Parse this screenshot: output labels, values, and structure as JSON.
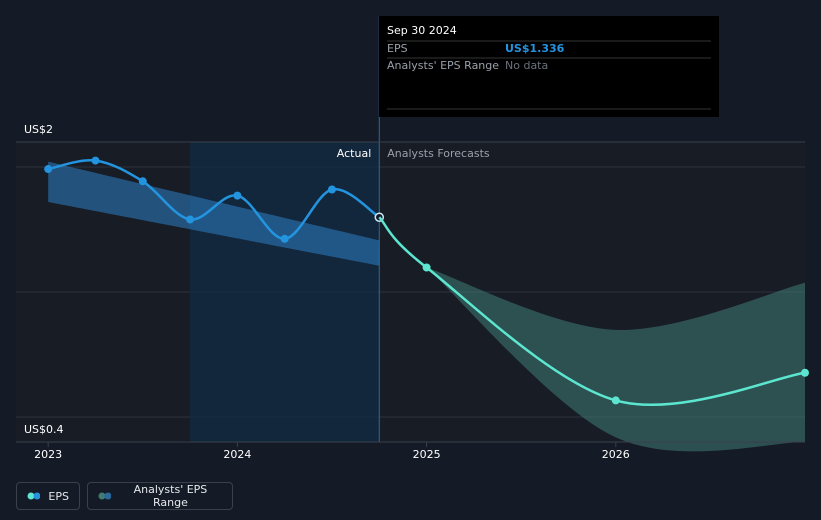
{
  "chart_data": {
    "type": "line",
    "log_y": true,
    "xlim": [
      2022.83,
      2027.0
    ],
    "xticks": [
      2023,
      2024,
      2025,
      2026
    ],
    "ylim": [
      0.4,
      2
    ],
    "yticks": [
      {
        "value": 2,
        "label": "US$2"
      },
      {
        "value": 0.4,
        "label": "US$0.4"
      }
    ],
    "annotations": [
      "Actual",
      "Analysts Forecasts"
    ],
    "series": [
      {
        "name": "EPS",
        "color": "#2394df",
        "x": [
          2023.0,
          2023.25,
          2023.5,
          2023.75,
          2024.0,
          2024.25,
          2024.5,
          2024.75
        ],
        "values": [
          1.73,
          1.81,
          1.62,
          1.32,
          1.5,
          1.19,
          1.55,
          1.336
        ]
      },
      {
        "color": "#5ce6d0",
        "x": [
          2024.75,
          2025.0,
          2026.0,
          2027.0
        ],
        "values": [
          1.336,
          1.02,
          0.5,
          0.58
        ]
      }
    ],
    "ranges": [
      {
        "name": "Analysts' EPS Range",
        "color": "#2d7fc4",
        "x": [
          2023.0,
          2024.75
        ],
        "low": [
          1.45,
          1.03
        ],
        "high": [
          1.8,
          1.18
        ]
      },
      {
        "color": "#3f7c74",
        "x": [
          2025.0,
          2026.0,
          2027.0
        ],
        "low": [
          1.02,
          0.41,
          0.4
        ],
        "high": [
          1.02,
          0.73,
          0.94
        ]
      }
    ],
    "tooltip": {
      "date": "Sep 30 2024",
      "rows": [
        {
          "label": "EPS",
          "value": "US$1.336"
        },
        {
          "label": "Analysts' EPS Range",
          "value": "No data"
        }
      ]
    }
  }
}
